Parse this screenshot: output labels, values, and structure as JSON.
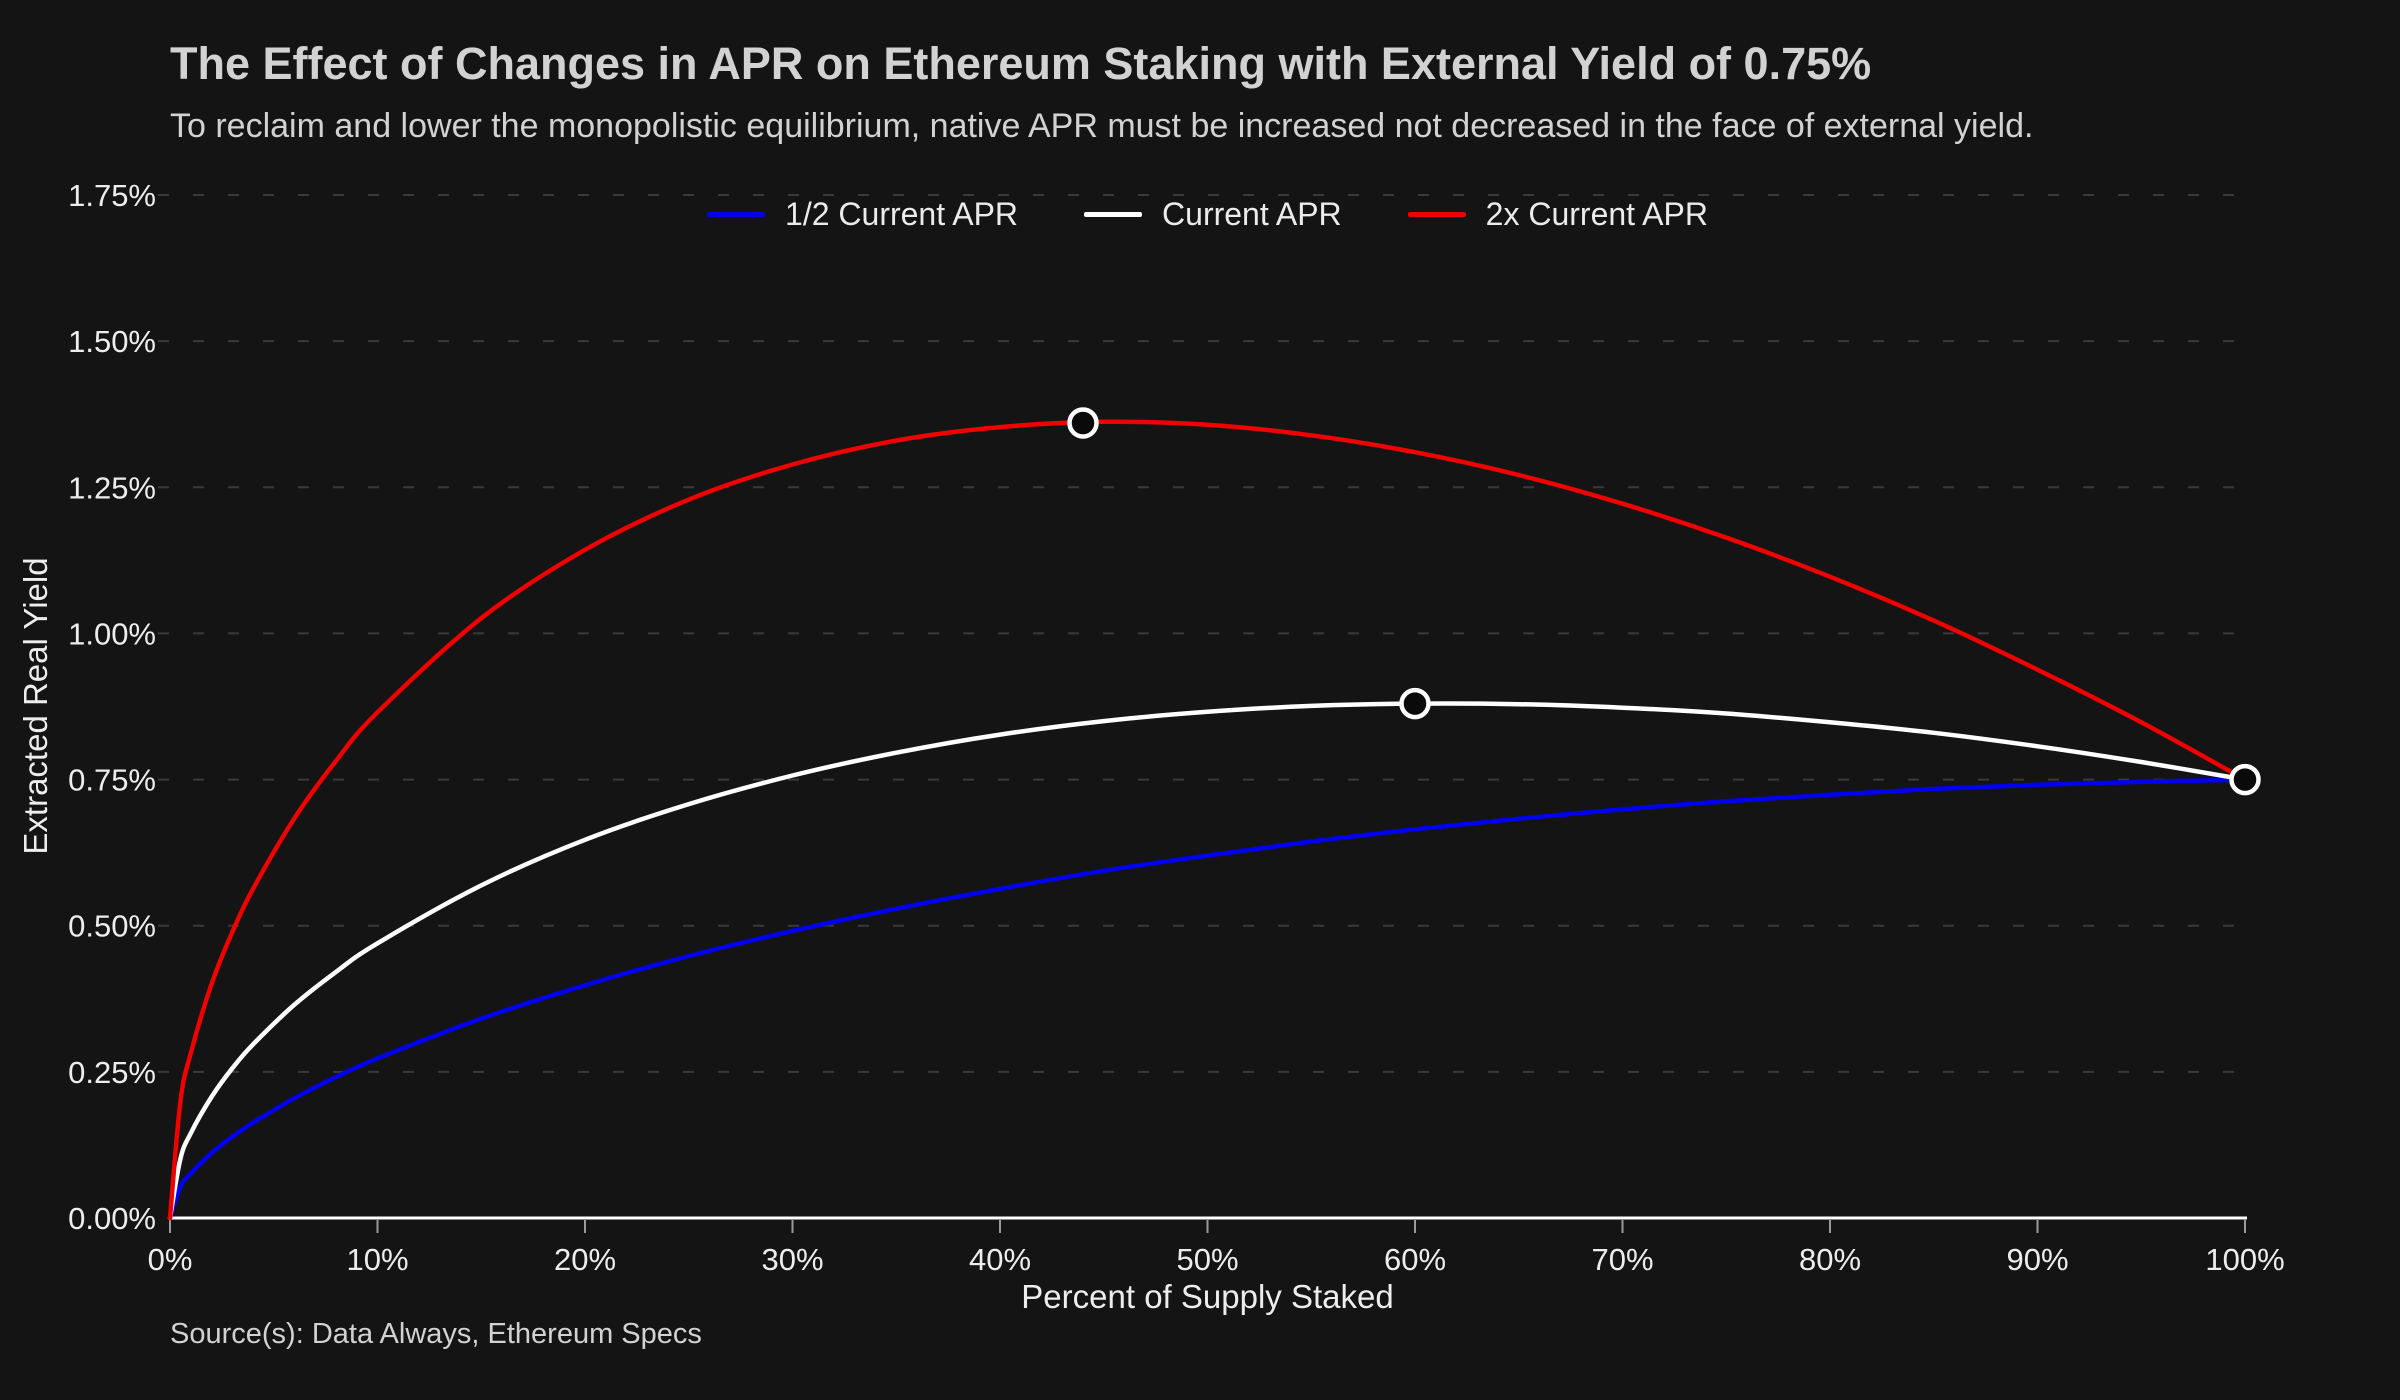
{
  "page": {
    "title": "The Effect of Changes in APR on Ethereum Staking with External Yield of 0.75%",
    "subtitle": "To reclaim and lower the monopolistic equilibrium, native APR must be increased not decreased in the face of external yield.",
    "source": "Source(s): Data Always, Ethereum Specs"
  },
  "colors": {
    "background": "#141414",
    "title_text": "#d2d2d2",
    "tick_text": "#ededed",
    "grid": "#3a3a3a",
    "axis_line": "#ffffff",
    "tick_mark": "#9a9a9a",
    "marker_fill": "#0a0a0a",
    "marker_stroke": "#ffffff"
  },
  "chart_data": {
    "type": "line",
    "title": "The Effect of Changes in APR on Ethereum Staking with External Yield of 0.75%",
    "xlabel": "Percent of Supply Staked",
    "ylabel": "Extracted Real Yield",
    "xlim": [
      0,
      100
    ],
    "ylim": [
      0,
      1.75
    ],
    "x_tick_labels": [
      "0%",
      "10%",
      "20%",
      "30%",
      "40%",
      "50%",
      "60%",
      "70%",
      "80%",
      "90%",
      "100%"
    ],
    "y_tick_labels": [
      "0.00%",
      "0.25%",
      "0.50%",
      "0.75%",
      "1.00%",
      "1.25%",
      "1.50%",
      "1.75%"
    ],
    "y_tick_values": [
      0,
      0.25,
      0.5,
      0.75,
      1.0,
      1.25,
      1.5,
      1.75
    ],
    "grid": "horizontal dashed",
    "legend_position": "top center",
    "external_yield_pct": 0.75,
    "x": [
      0,
      0.5,
      1,
      2,
      3,
      4,
      6,
      8,
      10,
      15,
      20,
      25,
      30,
      35,
      40,
      45,
      50,
      55,
      60,
      65,
      70,
      75,
      80,
      85,
      90,
      95,
      100
    ],
    "series": [
      {
        "name": "1/2 Current APR",
        "color": "#0202ee",
        "values": [
          0,
          0.053,
          0.076,
          0.111,
          0.139,
          0.163,
          0.205,
          0.241,
          0.273,
          0.341,
          0.398,
          0.448,
          0.491,
          0.529,
          0.563,
          0.594,
          0.62,
          0.644,
          0.665,
          0.683,
          0.699,
          0.713,
          0.724,
          0.734,
          0.741,
          0.746,
          0.75
        ]
      },
      {
        "name": "Current APR",
        "color": "#ffffff",
        "values": [
          0,
          0.101,
          0.145,
          0.207,
          0.256,
          0.297,
          0.365,
          0.421,
          0.47,
          0.569,
          0.647,
          0.708,
          0.757,
          0.796,
          0.827,
          0.85,
          0.866,
          0.876,
          0.88,
          0.879,
          0.873,
          0.863,
          0.848,
          0.83,
          0.807,
          0.78,
          0.75
        ]
      },
      {
        "name": "2x Current APR",
        "color": "#ee0202",
        "values": [
          0,
          0.199,
          0.282,
          0.4,
          0.489,
          0.563,
          0.684,
          0.782,
          0.865,
          1.026,
          1.143,
          1.229,
          1.289,
          1.33,
          1.353,
          1.362,
          1.357,
          1.339,
          1.31,
          1.271,
          1.222,
          1.164,
          1.097,
          1.022,
          0.938,
          0.848,
          0.75
        ]
      }
    ],
    "markers": [
      {
        "series": "2x Current APR",
        "x": 44,
        "y": 1.36
      },
      {
        "series": "Current APR",
        "x": 60,
        "y": 0.88
      },
      {
        "series": "all-curves-convergence",
        "x": 100,
        "y": 0.75
      }
    ]
  }
}
